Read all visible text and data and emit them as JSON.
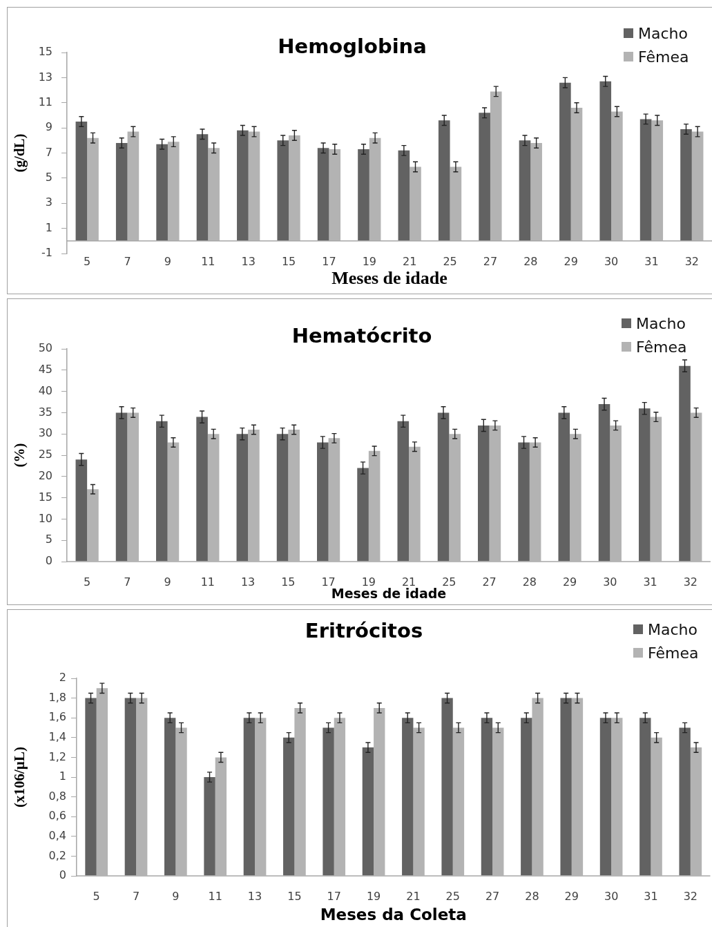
{
  "chart_data": [
    {
      "type": "bar",
      "title": "Hemoglobina",
      "xlabel": "Meses de idade",
      "ylabel": "(g/dL)",
      "categories": [
        "5",
        "7",
        "9",
        "11",
        "13",
        "15",
        "17",
        "19",
        "21",
        "25",
        "27",
        "28",
        "29",
        "30",
        "31",
        "32"
      ],
      "series": [
        {
          "name": "Macho",
          "color": "#626262",
          "values": [
            9.5,
            7.8,
            7.7,
            8.5,
            8.8,
            8.0,
            7.4,
            7.3,
            7.2,
            9.6,
            10.2,
            8.0,
            12.6,
            12.7,
            9.7,
            8.9
          ],
          "errors": [
            0.4,
            0.4,
            0.4,
            0.4,
            0.4,
            0.4,
            0.4,
            0.4,
            0.4,
            0.4,
            0.4,
            0.4,
            0.4,
            0.4,
            0.4,
            0.4
          ]
        },
        {
          "name": "Fêmea",
          "color": "#b3b3b3",
          "values": [
            8.2,
            8.7,
            7.9,
            7.4,
            8.7,
            8.4,
            7.3,
            8.2,
            5.9,
            5.9,
            11.9,
            7.8,
            10.6,
            10.3,
            9.6,
            8.7
          ],
          "errors": [
            0.4,
            0.4,
            0.4,
            0.4,
            0.4,
            0.4,
            0.4,
            0.4,
            0.4,
            0.4,
            0.4,
            0.4,
            0.4,
            0.4,
            0.4,
            0.4
          ]
        }
      ],
      "ylim": [
        -1,
        15
      ],
      "yticks": [
        -1,
        1,
        3,
        5,
        7,
        9,
        11,
        13,
        15
      ],
      "legend": "top right"
    },
    {
      "type": "bar",
      "title": "Hematócrito",
      "xlabel": "Meses de idade",
      "ylabel": "(%)",
      "categories": [
        "5",
        "7",
        "9",
        "11",
        "13",
        "15",
        "17",
        "19",
        "21",
        "25",
        "27",
        "28",
        "29",
        "30",
        "31",
        "32"
      ],
      "series": [
        {
          "name": "Macho",
          "color": "#626262",
          "values": [
            24,
            35,
            33,
            34,
            30,
            30,
            28,
            22,
            33,
            35,
            32,
            28,
            35,
            37,
            36,
            46
          ],
          "errors": [
            1.4,
            1.4,
            1.4,
            1.4,
            1.4,
            1.4,
            1.4,
            1.4,
            1.4,
            1.4,
            1.4,
            1.4,
            1.4,
            1.4,
            1.4,
            1.4
          ]
        },
        {
          "name": "Fêmea",
          "color": "#b3b3b3",
          "values": [
            17,
            35,
            28,
            30,
            31,
            31,
            29,
            26,
            27,
            30,
            32,
            28,
            30,
            32,
            34,
            35
          ],
          "errors": [
            1.1,
            1.1,
            1.1,
            1.1,
            1.1,
            1.1,
            1.1,
            1.1,
            1.1,
            1.1,
            1.1,
            1.1,
            1.1,
            1.1,
            1.1,
            1.1
          ]
        }
      ],
      "ylim": [
        0,
        50
      ],
      "yticks": [
        0,
        5,
        10,
        15,
        20,
        25,
        30,
        35,
        40,
        45,
        50
      ],
      "legend": "top right"
    },
    {
      "type": "bar",
      "title": "Eritrócitos",
      "xlabel": "Meses da Coleta",
      "ylabel": "(x106/µL)",
      "categories": [
        "5",
        "7",
        "9",
        "11",
        "13",
        "15",
        "17",
        "19",
        "21",
        "25",
        "27",
        "28",
        "29",
        "30",
        "31",
        "32"
      ],
      "series": [
        {
          "name": "Macho",
          "color": "#626262",
          "values": [
            1.8,
            1.8,
            1.6,
            1.0,
            1.6,
            1.4,
            1.5,
            1.3,
            1.6,
            1.8,
            1.6,
            1.6,
            1.8,
            1.6,
            1.6,
            1.5
          ],
          "errors": [
            0.05,
            0.05,
            0.05,
            0.05,
            0.05,
            0.05,
            0.05,
            0.05,
            0.05,
            0.05,
            0.05,
            0.05,
            0.05,
            0.05,
            0.05,
            0.05
          ]
        },
        {
          "name": "Fêmea",
          "color": "#b3b3b3",
          "values": [
            1.9,
            1.8,
            1.5,
            1.2,
            1.6,
            1.7,
            1.6,
            1.7,
            1.5,
            1.5,
            1.5,
            1.8,
            1.8,
            1.6,
            1.4,
            1.3
          ],
          "errors": [
            0.05,
            0.05,
            0.05,
            0.05,
            0.05,
            0.05,
            0.05,
            0.05,
            0.05,
            0.05,
            0.05,
            0.05,
            0.05,
            0.05,
            0.05,
            0.05
          ]
        }
      ],
      "ylim": [
        0,
        2
      ],
      "yticks": [
        0,
        {
          "value": 0.2,
          "label": "0,2"
        },
        {
          "value": 0.4,
          "label": "0,4"
        },
        {
          "value": 0.6,
          "label": "0,6"
        },
        {
          "value": 0.8,
          "label": "0,8"
        },
        1,
        {
          "value": 1.2,
          "label": "1,2"
        },
        {
          "value": 1.4,
          "label": "1,4"
        },
        {
          "value": 1.6,
          "label": "1,6"
        },
        {
          "value": 1.8,
          "label": "1,8"
        },
        2
      ],
      "legend": "top right"
    }
  ]
}
